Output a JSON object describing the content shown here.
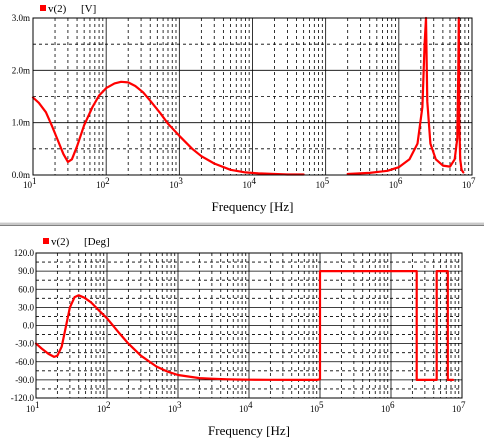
{
  "chart_data": [
    {
      "type": "line",
      "legend": {
        "series_label": "v(2)",
        "unit_label": "[V]",
        "color": "#ff0000"
      },
      "xlabel": "Frequency [Hz]",
      "xscale": "log",
      "xlim": [
        10,
        10000000
      ],
      "x_tick_labels": [
        {
          "value": 10,
          "label": "10",
          "exp": "1"
        },
        {
          "value": 100,
          "label": "10",
          "exp": "2"
        },
        {
          "value": 1000,
          "label": "10",
          "exp": "3"
        },
        {
          "value": 10000,
          "label": "10",
          "exp": "4"
        },
        {
          "value": 100000,
          "label": "10",
          "exp": "5"
        },
        {
          "value": 1000000,
          "label": "10",
          "exp": "6"
        },
        {
          "value": 10000000,
          "label": "10",
          "exp": "7"
        }
      ],
      "ylim": [
        0,
        0.003
      ],
      "y_tick_labels": [
        {
          "value": 0.0,
          "label": "0.0m"
        },
        {
          "value": 0.001,
          "label": "1.0m"
        },
        {
          "value": 0.002,
          "label": "2.0m"
        },
        {
          "value": 0.003,
          "label": "3.0m"
        }
      ],
      "grid": true,
      "series": [
        {
          "color": "#ff0000",
          "segments": [
            {
              "x": [
                10,
                12,
                15,
                18,
                22,
                26,
                30,
                34,
                40,
                50,
                65,
                80,
                100,
                130,
                160,
                200,
                250,
                320,
                400,
                550,
                700,
                1000,
                1500,
                2000,
                3000,
                5000,
                8000,
                12000,
                20000,
                30000,
                50000
              ],
              "y": [
                0.00148,
                0.00138,
                0.0012,
                0.00095,
                0.00065,
                0.0004,
                0.00025,
                0.0003,
                0.00055,
                0.00095,
                0.0013,
                0.00152,
                0.00166,
                0.00175,
                0.00178,
                0.00177,
                0.0017,
                0.00158,
                0.00142,
                0.00118,
                0.00098,
                0.00075,
                0.0005,
                0.00036,
                0.00022,
                0.0001,
                5e-05,
                3e-05,
                2e-05,
                1e-05,
                1e-05
              ]
            },
            {
              "x": [
                200000,
                400000,
                700000,
                1000000,
                1400000,
                1800000,
                2100000,
                2250000,
                2350000,
                2450000,
                2700000,
                3200000,
                4000000,
                5000000,
                5800000,
                6300000,
                6500000,
                6600000,
                6700000,
                6900000,
                7200000,
                7600000
              ],
              "y": [
                2e-05,
                4e-05,
                8e-05,
                0.00015,
                0.0003,
                0.0006,
                0.0013,
                0.0025,
                0.003,
                0.0014,
                0.0006,
                0.0003,
                0.00018,
                0.00016,
                0.0003,
                0.0007,
                0.002,
                0.003,
                0.001,
                0.0003,
                0.0001,
                5e-05
              ]
            }
          ]
        }
      ]
    },
    {
      "type": "line",
      "legend": {
        "series_label": "v(2)",
        "unit_label": "[Deg]",
        "color": "#ff0000"
      },
      "xlabel": "Frequency [Hz]",
      "xscale": "log",
      "xlim": [
        10,
        10000000
      ],
      "x_tick_labels": [
        {
          "value": 10,
          "label": "10",
          "exp": "1"
        },
        {
          "value": 100,
          "label": "10",
          "exp": "2"
        },
        {
          "value": 1000,
          "label": "10",
          "exp": "3"
        },
        {
          "value": 10000,
          "label": "10",
          "exp": "4"
        },
        {
          "value": 100000,
          "label": "10",
          "exp": "5"
        },
        {
          "value": 1000000,
          "label": "10",
          "exp": "6"
        },
        {
          "value": 10000000,
          "label": "10",
          "exp": "7"
        }
      ],
      "ylim": [
        -120,
        120
      ],
      "y_tick_labels": [
        {
          "value": 120,
          "label": "120.0"
        },
        {
          "value": 90,
          "label": "90.0"
        },
        {
          "value": 60,
          "label": "60.0"
        },
        {
          "value": 30,
          "label": "30.0"
        },
        {
          "value": 0,
          "label": "0.0"
        },
        {
          "value": -30,
          "label": "-30.0"
        },
        {
          "value": -60,
          "label": "-60.0"
        },
        {
          "value": -90,
          "label": "-90.0"
        },
        {
          "value": -120,
          "label": "-120.0"
        }
      ],
      "grid": true,
      "series": [
        {
          "color": "#ff0000",
          "segments": [
            {
              "x": [
                10,
                12,
                15,
                18,
                20,
                23,
                26,
                30,
                35,
                40,
                48,
                60,
                80,
                100,
                150,
                200,
                300,
                500,
                700,
                1000,
                2000,
                3000,
                5000,
                8000,
                10000,
                20000,
                50000,
                90000,
                100000,
                100000,
                120000,
                200000,
                500000,
                1000000,
                2000000,
                2300000,
                2300000,
                2700000,
                3500000,
                4400000,
                4400000,
                5000000,
                6000000,
                6300000,
                6300000,
                6500000,
                6800000,
                7500000
              ],
              "y": [
                -30,
                -38,
                -47,
                -52,
                -50,
                -35,
                -5,
                30,
                47,
                50,
                46,
                38,
                23,
                12,
                -13,
                -30,
                -50,
                -68,
                -76,
                -82,
                -87,
                -88,
                -89,
                -89.5,
                -89.7,
                -89.9,
                -90,
                -90,
                -89,
                90,
                90,
                90,
                90,
                90,
                90,
                90,
                -90,
                -90,
                -90,
                -90,
                90,
                90,
                90,
                90,
                -90,
                -90,
                -90,
                -90
              ]
            }
          ]
        }
      ]
    }
  ]
}
